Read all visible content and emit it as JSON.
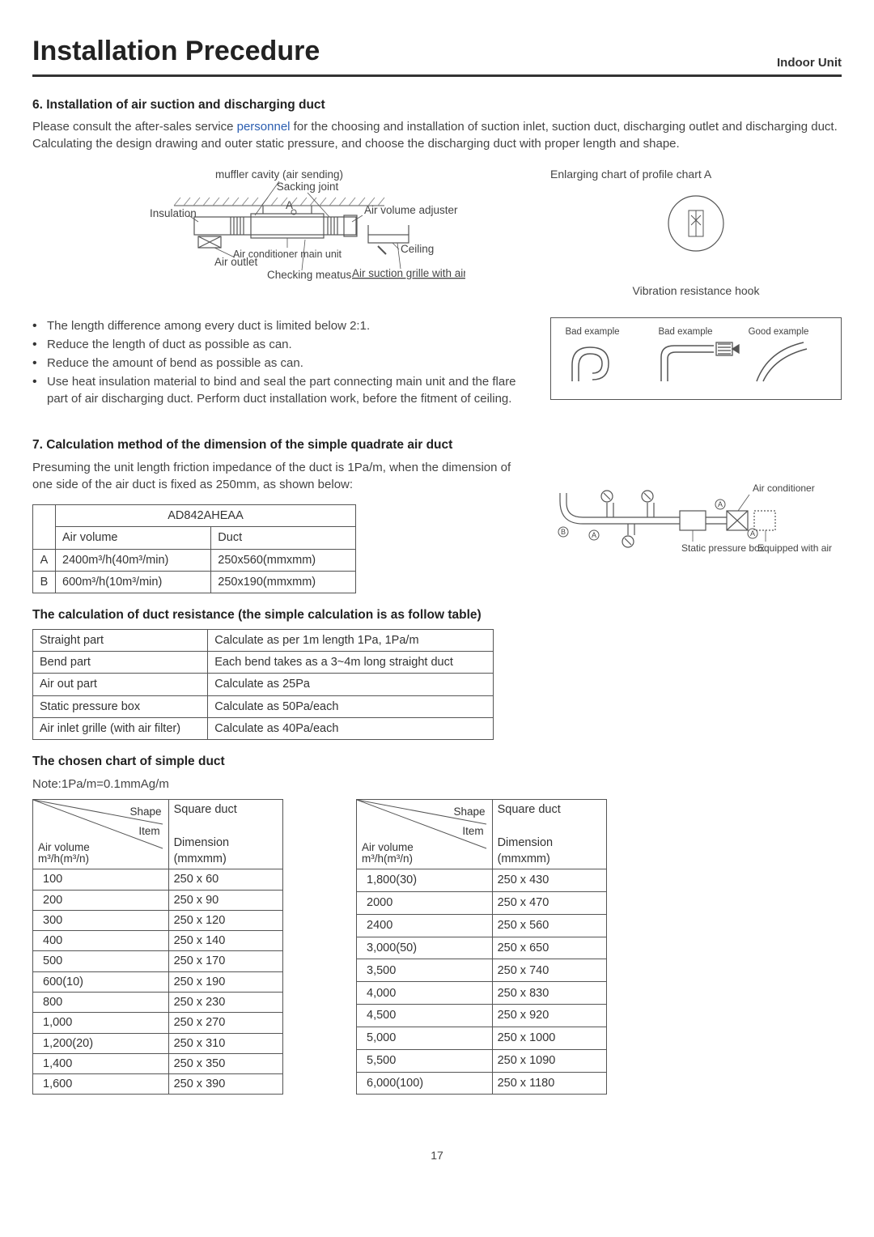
{
  "header": {
    "title": "Installation Precedure",
    "subtitle": "Indoor Unit"
  },
  "section6": {
    "heading": "6. Installation of air suction and discharging duct",
    "intro_pre": "Please consult the after-sales service ",
    "intro_link": "personnel",
    "intro_post": " for the choosing and installation of suction inlet, suction duct, discharging outlet and discharging duct. Calculating the design drawing and outer static pressure, and choose the discharging duct with proper length and shape.",
    "diagram_labels": {
      "muffler": "muffler cavity (air sending)",
      "sacking": "Sacking joint",
      "insulation": "Insulation",
      "a": "A",
      "adjuster": "Air volume adjuster",
      "air_outlet": "Air outlet",
      "main_unit": "Air conditioner main unit",
      "checking": "Checking meatus",
      "ceiling": "Ceiling",
      "grille": "Air suction grille with air filter"
    },
    "enlarging_title": "Enlarging chart of profile chart A",
    "vibration_label": "Vibration resistance hook",
    "bullets": [
      "The length difference among every duct is limited below 2:1.",
      "Reduce the length of duct as possible as can.",
      "Reduce the amount of bend as possible as can.",
      "Use heat insulation material to bind and seal the part connecting main unit and the flare part of air discharging duct. Perform duct installation work, before the fitment of ceiling."
    ],
    "examples": {
      "bad1": "Bad example",
      "bad2": "Bad example",
      "good": "Good example"
    }
  },
  "section7": {
    "heading": "7. Calculation method of the dimension of the simple quadrate air duct",
    "intro": "Presuming the unit length friction impedance of the duct is 1Pa/m, when the dimension of one side of the air duct is fixed as 250mm, as shown below:",
    "model_table": {
      "model": "AD842AHEAA",
      "col1": "Air volume",
      "col2": "Duct",
      "rows": [
        {
          "k": "A",
          "vol": "2400m³/h(40m³/min)",
          "duct": "250x560(mmxmm)"
        },
        {
          "k": "B",
          "vol": "600m³/h(10m³/min)",
          "duct": "250x190(mmxmm)"
        }
      ]
    },
    "schematic": {
      "ac": "Air conditioner",
      "spb": "Static pressure box",
      "ef": "Equipped with air filter (bought)",
      "a": "A",
      "b": "B"
    },
    "resistance_heading": "The calculation of duct resistance (the simple calculation is as follow table)",
    "resistance_rows": [
      [
        "Straight part",
        "Calculate as per 1m length 1Pa, 1Pa/m"
      ],
      [
        "Bend part",
        "Each bend takes as a 3~4m long straight duct"
      ],
      [
        "Air out part",
        "Calculate as 25Pa"
      ],
      [
        "Static pressure box",
        "Calculate as 50Pa/each"
      ],
      [
        "Air inlet grille (with air filter)",
        "Calculate as 40Pa/each"
      ]
    ],
    "chart_heading": "The chosen chart of simple duct",
    "chart_note": "Note:1Pa/m=0.1mmAg/m",
    "chart_header": {
      "shape": "Shape",
      "item": "Item",
      "air_volume": "Air volume",
      "unit": "m³/h(m³/n)",
      "col2_line1": "Square duct",
      "col2_line2": "Dimension (mmxmm)"
    },
    "chart_left": [
      [
        "100",
        "250 x 60"
      ],
      [
        "200",
        "250 x 90"
      ],
      [
        "300",
        "250 x 120"
      ],
      [
        "400",
        "250 x 140"
      ],
      [
        "500",
        "250 x 170"
      ],
      [
        "600(10)",
        "250 x 190"
      ],
      [
        "800",
        "250 x 230"
      ],
      [
        "1,000",
        "250 x 270"
      ],
      [
        "1,200(20)",
        "250 x 310"
      ],
      [
        "1,400",
        "250 x 350"
      ],
      [
        "1,600",
        "250 x 390"
      ]
    ],
    "chart_right": [
      [
        "1,800(30)",
        "250 x 430"
      ],
      [
        "2000",
        "250 x 470"
      ],
      [
        "2400",
        "250 x 560"
      ],
      [
        "3,000(50)",
        "250 x 650"
      ],
      [
        "3,500",
        "250 x 740"
      ],
      [
        "4,000",
        "250 x 830"
      ],
      [
        "4,500",
        "250 x 920"
      ],
      [
        "5,000",
        "250 x 1000"
      ],
      [
        "5,500",
        "250 x 1090"
      ],
      [
        "6,000(100)",
        "250 x 1180"
      ]
    ]
  },
  "page_number": "17",
  "style": {
    "stroke": "#555555",
    "text": "#444444",
    "hatch": "#888888"
  }
}
